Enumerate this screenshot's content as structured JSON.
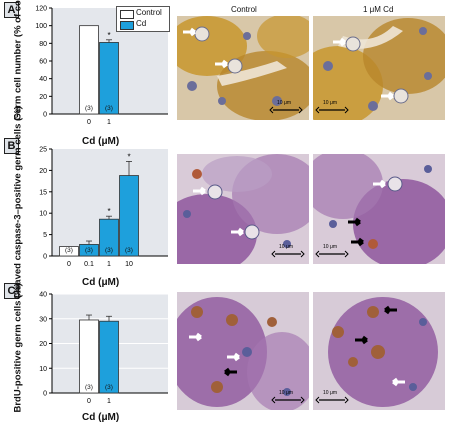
{
  "panels": [
    {
      "letter": "A",
      "ylabel": "Germ cell number (% of control)",
      "xlabel": "Cd (μM)"
    },
    {
      "letter": "B",
      "ylabel": "Cleaved caspase-3–positive germ cells (%)",
      "xlabel": "Cd (μM)"
    },
    {
      "letter": "C",
      "ylabel": "BrdU-positive germ cells (%)",
      "xlabel": "Cd (μM)"
    }
  ],
  "legend": {
    "control": "Control",
    "cd": "Cd"
  },
  "micrograph_labels": {
    "control": "Control",
    "cd": "1 μM Cd"
  },
  "scale_bar": "10 μm",
  "colors": {
    "control_fill": "#ffffff",
    "cd_fill": "#1ea0dc",
    "plot_bg": "#e4e7ec",
    "brown_stain": "#c8962e",
    "purple_stain": "#8a4f9a"
  },
  "chart_data": [
    {
      "type": "bar",
      "categories": [
        "0",
        "1"
      ],
      "values": [
        100,
        81
      ],
      "errors": [
        0,
        3
      ],
      "n_labels": [
        "(3)",
        "(3)"
      ],
      "significance": [
        "",
        "*"
      ],
      "ylim": [
        0,
        120
      ],
      "yticks": [
        0,
        20,
        40,
        60,
        80,
        100,
        120
      ],
      "grid": false,
      "legend_position": "top-right"
    },
    {
      "type": "bar",
      "categories": [
        "0",
        "0.1",
        "1",
        "10"
      ],
      "values": [
        2.2,
        2.7,
        8.6,
        18.8
      ],
      "errors": [
        0,
        0.8,
        0.7,
        3.3
      ],
      "n_labels": [
        "(3)",
        "(3)",
        "(3)",
        "(3)"
      ],
      "significance": [
        "",
        "",
        "*",
        "*"
      ],
      "ylim": [
        0,
        25
      ],
      "yticks": [
        0,
        5,
        10,
        15,
        20,
        25
      ],
      "grid": false
    },
    {
      "type": "bar",
      "categories": [
        "0",
        "1"
      ],
      "values": [
        29.5,
        29
      ],
      "errors": [
        2,
        2
      ],
      "n_labels": [
        "(3)",
        "(3)"
      ],
      "significance": [
        "",
        ""
      ],
      "ylim": [
        0,
        40
      ],
      "yticks": [
        0,
        10,
        20,
        30,
        40
      ],
      "grid": true
    }
  ]
}
